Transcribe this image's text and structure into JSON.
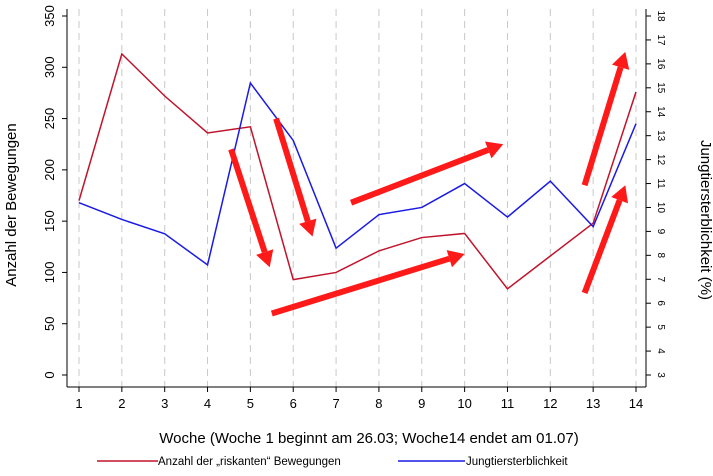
{
  "chart_data": {
    "type": "line",
    "x": [
      1,
      2,
      3,
      4,
      5,
      6,
      7,
      8,
      9,
      10,
      11,
      12,
      13,
      14
    ],
    "xlabel": "Woche (Woche 1 beginnt am 26.03; Woche14 endet am 01.07)",
    "ylabel_left": "Anzahl der Bewegungen",
    "ylabel_right": "Jungtiersterblichkeit (%)",
    "xlim": [
      1,
      14
    ],
    "ylim_left": [
      0,
      350
    ],
    "ylim_right": [
      3,
      18
    ],
    "yticks_left": [
      0,
      50,
      100,
      150,
      200,
      250,
      300,
      350
    ],
    "yticks_right": [
      3,
      4,
      5,
      6,
      7,
      8,
      9,
      10,
      11,
      12,
      13,
      14,
      15,
      16,
      17,
      18
    ],
    "grid": "vertical dashed",
    "legend_position": "bottom",
    "series": [
      {
        "name": "Anzahl der „riskanten“ Bewegungen",
        "axis": "left",
        "color": "#c0142c",
        "values": [
          170,
          313,
          272,
          236,
          242,
          93,
          100,
          121,
          134,
          138,
          84,
          116,
          148,
          276
        ]
      },
      {
        "name": "Jungtiersterblichkeit",
        "axis": "right",
        "color": "#1a1ae6",
        "values": [
          10.2,
          9.5,
          8.9,
          7.6,
          15.2,
          12.8,
          8.3,
          9.7,
          10.0,
          11.0,
          9.6,
          11.1,
          9.2,
          13.5
        ]
      }
    ],
    "annotations": [
      {
        "type": "arrow",
        "color": "#ff1a1a",
        "from": {
          "x": 4.55,
          "y": 220
        },
        "to": {
          "x": 5.45,
          "y": 105
        }
      },
      {
        "type": "arrow",
        "color": "#ff1a1a",
        "from": {
          "x": 5.6,
          "y": 250
        },
        "to": {
          "x": 6.45,
          "y": 135
        }
      },
      {
        "type": "arrow",
        "color": "#ff1a1a",
        "from": {
          "x": 7.35,
          "y": 168
        },
        "to": {
          "x": 10.9,
          "y": 225
        }
      },
      {
        "type": "arrow",
        "color": "#ff1a1a",
        "from": {
          "x": 5.5,
          "y": 60
        },
        "to": {
          "x": 10.0,
          "y": 118
        }
      },
      {
        "type": "arrow",
        "color": "#ff1a1a",
        "from": {
          "x": 12.8,
          "y": 185
        },
        "to": {
          "x": 13.75,
          "y": 315
        }
      },
      {
        "type": "arrow",
        "color": "#ff1a1a",
        "from": {
          "x": 12.8,
          "y": 80
        },
        "to": {
          "x": 13.75,
          "y": 185
        }
      }
    ]
  }
}
